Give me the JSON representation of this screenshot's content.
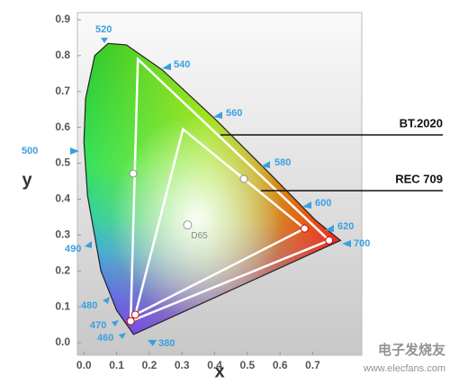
{
  "chart_data": {
    "type": "chromaticity",
    "xlabel": "x",
    "ylabel": "y",
    "xlim": [
      -0.02,
      0.85
    ],
    "ylim": [
      -0.035,
      0.92
    ],
    "xticks": [
      {
        "value": 0,
        "label": "0.0"
      },
      0.1,
      0.2,
      0.3,
      0.4,
      0.5,
      0.6,
      0.7
    ],
    "yticks": [
      {
        "value": 0,
        "label": "0.0"
      },
      0.1,
      0.2,
      0.3,
      0.4,
      0.5,
      0.6,
      0.7,
      0.8,
      0.9
    ],
    "locus": {
      "x": [
        0.152,
        0.1,
        0.052,
        0.011,
        0.0,
        0.005,
        0.033,
        0.074,
        0.13,
        0.24,
        0.405,
        0.57,
        0.71,
        0.785
      ],
      "y": [
        0.023,
        0.09,
        0.2,
        0.41,
        0.56,
        0.68,
        0.8,
        0.834,
        0.83,
        0.76,
        0.62,
        0.47,
        0.34,
        0.285
      ]
    },
    "wavelength_labels": [
      "520",
      "540",
      "560",
      "580",
      "600",
      "620",
      "700",
      "500",
      "490",
      "480",
      "470",
      "460",
      "380"
    ],
    "series": [
      {
        "name": "BT.2020",
        "color": "#ffffff",
        "x": [
          0.75,
          0.165,
          0.143
        ],
        "y": [
          0.285,
          0.79,
          0.06
        ]
      },
      {
        "name": "REC 709",
        "color": "#ffffff",
        "x": [
          0.675,
          0.303,
          0.157
        ],
        "y": [
          0.318,
          0.595,
          0.078
        ]
      }
    ],
    "white_point": {
      "name": "D65",
      "x": 0.317,
      "y": 0.328
    },
    "watermark": {
      "title": "电子发烧友",
      "url": "www.elecfans.com"
    }
  }
}
